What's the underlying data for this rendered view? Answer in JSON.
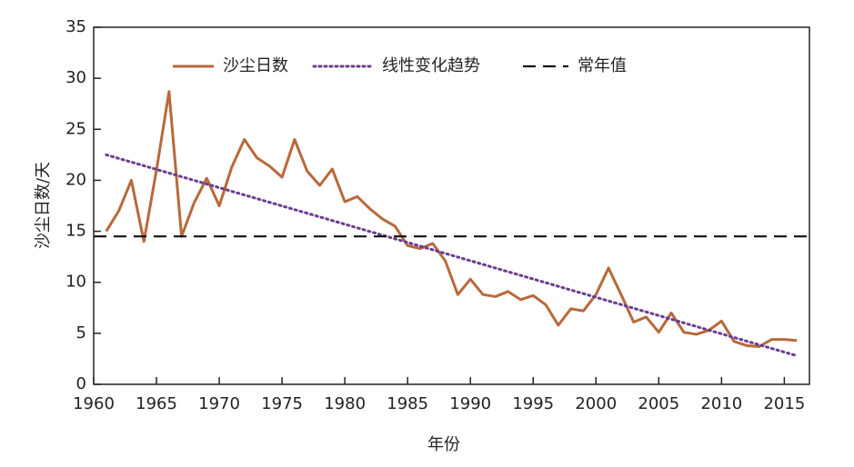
{
  "chart_data": {
    "type": "line",
    "xlabel": "年份",
    "ylabel": "沙尘日数/天",
    "xlim": [
      1960,
      2017
    ],
    "ylim": [
      0,
      35
    ],
    "xticks": [
      1960,
      1965,
      1970,
      1975,
      1980,
      1985,
      1990,
      1995,
      2000,
      2005,
      2010,
      2015
    ],
    "yticks": [
      0,
      5,
      10,
      15,
      20,
      25,
      30,
      35
    ],
    "legend": "upper left",
    "series": [
      {
        "name": "沙尘日数",
        "color": "#b8693a",
        "style": "solid",
        "x": [
          1961,
          1962,
          1963,
          1964,
          1965,
          1966,
          1967,
          1968,
          1969,
          1970,
          1971,
          1972,
          1973,
          1974,
          1975,
          1976,
          1977,
          1978,
          1979,
          1980,
          1981,
          1982,
          1983,
          1984,
          1985,
          1986,
          1987,
          1988,
          1989,
          1990,
          1991,
          1992,
          1993,
          1994,
          1995,
          1996,
          1997,
          1998,
          1999,
          2000,
          2001,
          2002,
          2003,
          2004,
          2005,
          2006,
          2007,
          2008,
          2009,
          2010,
          2011,
          2012,
          2013,
          2014,
          2015,
          2016
        ],
        "values": [
          15.0,
          17.0,
          20.0,
          14.0,
          21.0,
          28.7,
          14.5,
          17.8,
          20.2,
          17.5,
          21.3,
          24.0,
          22.2,
          21.4,
          20.3,
          24.0,
          20.9,
          19.5,
          21.1,
          17.9,
          18.4,
          17.2,
          16.2,
          15.5,
          13.6,
          13.3,
          13.8,
          12.1,
          8.8,
          10.3,
          8.8,
          8.6,
          9.1,
          8.3,
          8.7,
          7.8,
          5.8,
          7.4,
          7.2,
          8.8,
          11.4,
          8.8,
          6.1,
          6.6,
          5.1,
          7.0,
          5.1,
          4.9,
          5.3,
          6.2,
          4.2,
          3.8,
          3.7,
          4.4,
          4.4,
          4.3
        ]
      },
      {
        "name": "线性变化趋势",
        "color": "#6a3d8f",
        "style": "dotted",
        "x": [
          1961,
          2016
        ],
        "values": [
          22.5,
          2.8
        ]
      },
      {
        "name": "常年值",
        "color": "#111111",
        "style": "dashed",
        "x": [
          1960,
          2017
        ],
        "values": [
          14.5,
          14.5
        ]
      }
    ]
  }
}
